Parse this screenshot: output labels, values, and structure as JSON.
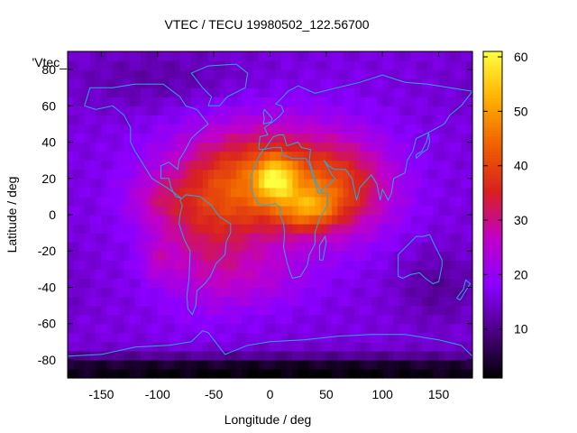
{
  "chart_data": {
    "type": "heatmap",
    "title": "VTEC / TECU 19980502_122.56700",
    "xlabel": "Longitude / deg",
    "ylabel": "Latitude / deg",
    "key_label": "'Vtec_",
    "xlim": [
      -180,
      180
    ],
    "ylim": [
      -90,
      90
    ],
    "xticks": [
      -150,
      -100,
      -50,
      0,
      50,
      100,
      150
    ],
    "yticks": [
      -80,
      -60,
      -40,
      -20,
      0,
      20,
      40,
      60,
      80
    ],
    "colorbar": {
      "range": [
        1,
        61
      ],
      "ticks": [
        10,
        20,
        30,
        40,
        50,
        60
      ],
      "colors": [
        "#000000",
        "#4b0082",
        "#8a00ff",
        "#c000c8",
        "#d82020",
        "#f06000",
        "#ffb000",
        "#ffff40"
      ]
    },
    "grid": {
      "lon_step": 5,
      "lat_step": 5,
      "background_tec": 16,
      "features": [
        {
          "lon": -5,
          "lat": 18,
          "sigma_lon": 55,
          "sigma_lat": 22,
          "amp": 28
        },
        {
          "lon": 5,
          "lat": 20,
          "sigma_lon": 12,
          "sigma_lat": 8,
          "amp": 18
        },
        {
          "lon": 35,
          "lat": 3,
          "sigma_lon": 18,
          "sigma_lat": 8,
          "amp": 14
        },
        {
          "lon": 70,
          "lat": 15,
          "sigma_lon": 30,
          "sigma_lat": 18,
          "amp": 12
        },
        {
          "lon": -60,
          "lat": -15,
          "sigma_lon": 30,
          "sigma_lat": 25,
          "amp": 10
        },
        {
          "lon": -100,
          "lat": 8,
          "sigma_lon": 20,
          "sigma_lat": 10,
          "amp": 6
        },
        {
          "lon": -10,
          "lat": -35,
          "sigma_lon": 35,
          "sigma_lat": 12,
          "amp": 6
        },
        {
          "lon": -100,
          "lat": -25,
          "sigma_lon": 10,
          "sigma_lat": 8,
          "amp": 6
        },
        {
          "lon": 0,
          "lat": -86,
          "sigma_lon": 400,
          "sigma_lat": 6,
          "amp": -15
        },
        {
          "lon": -100,
          "lat": 75,
          "sigma_lon": 60,
          "sigma_lat": 12,
          "amp": -4
        },
        {
          "lon": 150,
          "lat": -40,
          "sigma_lon": 25,
          "sigma_lat": 15,
          "amp": -5
        }
      ]
    },
    "coastline_color": "#2aa8e0"
  }
}
